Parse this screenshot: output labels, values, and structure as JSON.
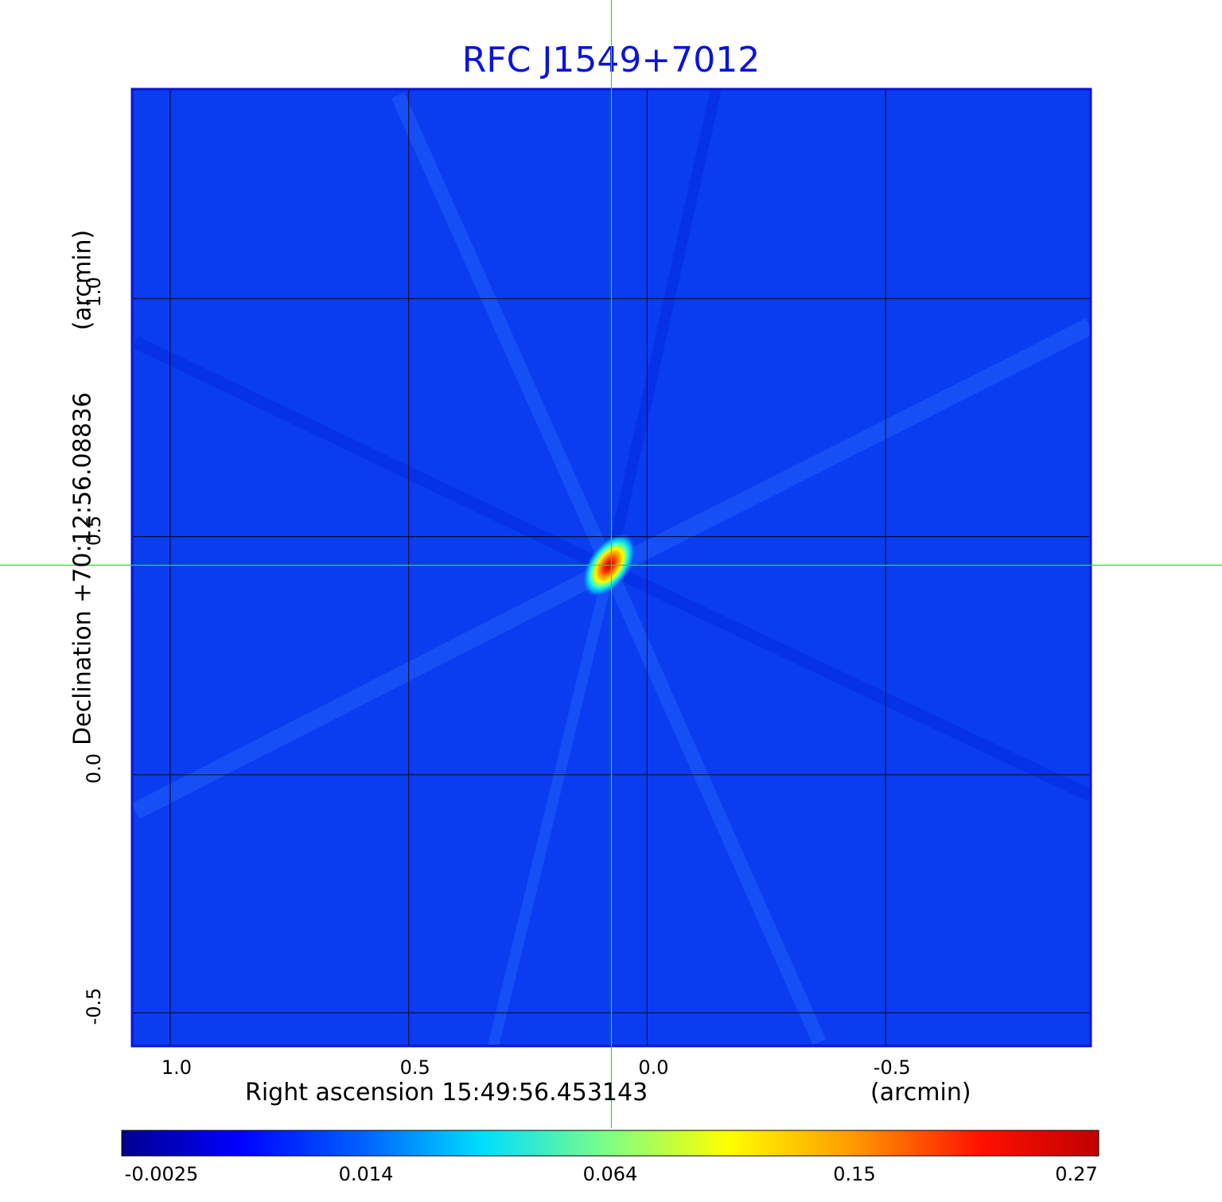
{
  "title": "RFC J1549+7012",
  "x_axis": {
    "label": "Right ascension  15:49:56.453143",
    "unit": "(arcmin)",
    "ticks": [
      "1.0",
      "0.5",
      "0.0",
      "-0.5"
    ],
    "tick_values": [
      1.0,
      0.5,
      0.0,
      -0.5
    ],
    "range": [
      1.08,
      -0.93
    ]
  },
  "y_axis": {
    "label": "Declination  +70:12:56.08836",
    "unit": "(arcmin)",
    "ticks": [
      "1.0",
      "0.5",
      "0.0",
      "-0.5"
    ],
    "tick_values": [
      1.0,
      0.5,
      0.0,
      -0.5
    ],
    "range": [
      -0.57,
      1.44
    ]
  },
  "colorbar": {
    "ticks": [
      "-0.0025",
      "0.014",
      "0.064",
      "0.15",
      "0.27"
    ],
    "colormap": "jet"
  },
  "source_peak": {
    "x_arcmin": 0.08,
    "y_arcmin": 0.44
  },
  "crosshair": {
    "x_arcmin": 0.075,
    "y_arcmin": 0.44,
    "color": "#22e022"
  },
  "colors": {
    "background_blue": "#0a3cf0",
    "frame": "#0a14d8",
    "grid": "#000000",
    "title": "#0a14d8"
  }
}
